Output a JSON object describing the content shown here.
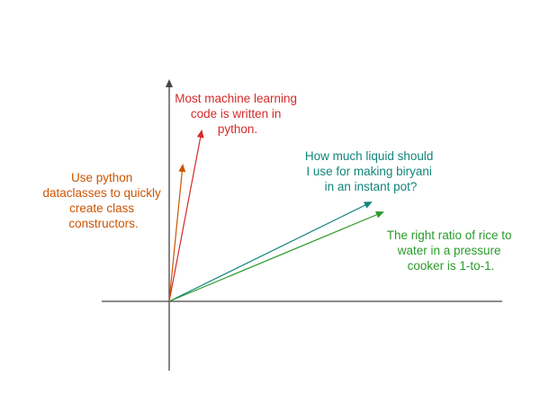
{
  "colors": {
    "axis": "#444444",
    "red": "#d52a2a",
    "orange": "#cc5500",
    "teal": "#11857a",
    "green": "#2a9a2a"
  },
  "vectors": [
    {
      "id": "ml-python",
      "color_key": "red",
      "lines": [
        "Most machine learning",
        "code is written in",
        "python."
      ]
    },
    {
      "id": "dataclasses",
      "color_key": "orange",
      "lines": [
        "Use python",
        "dataclasses to quickly",
        "create class",
        "constructors."
      ]
    },
    {
      "id": "biryani",
      "color_key": "teal",
      "lines": [
        "How much liquid should",
        "I use for making biryani",
        "in an instant pot?"
      ]
    },
    {
      "id": "rice-ratio",
      "color_key": "green",
      "lines": [
        "The right ratio of rice to",
        "water in a pressure",
        "cooker is 1-to-1."
      ]
    }
  ]
}
